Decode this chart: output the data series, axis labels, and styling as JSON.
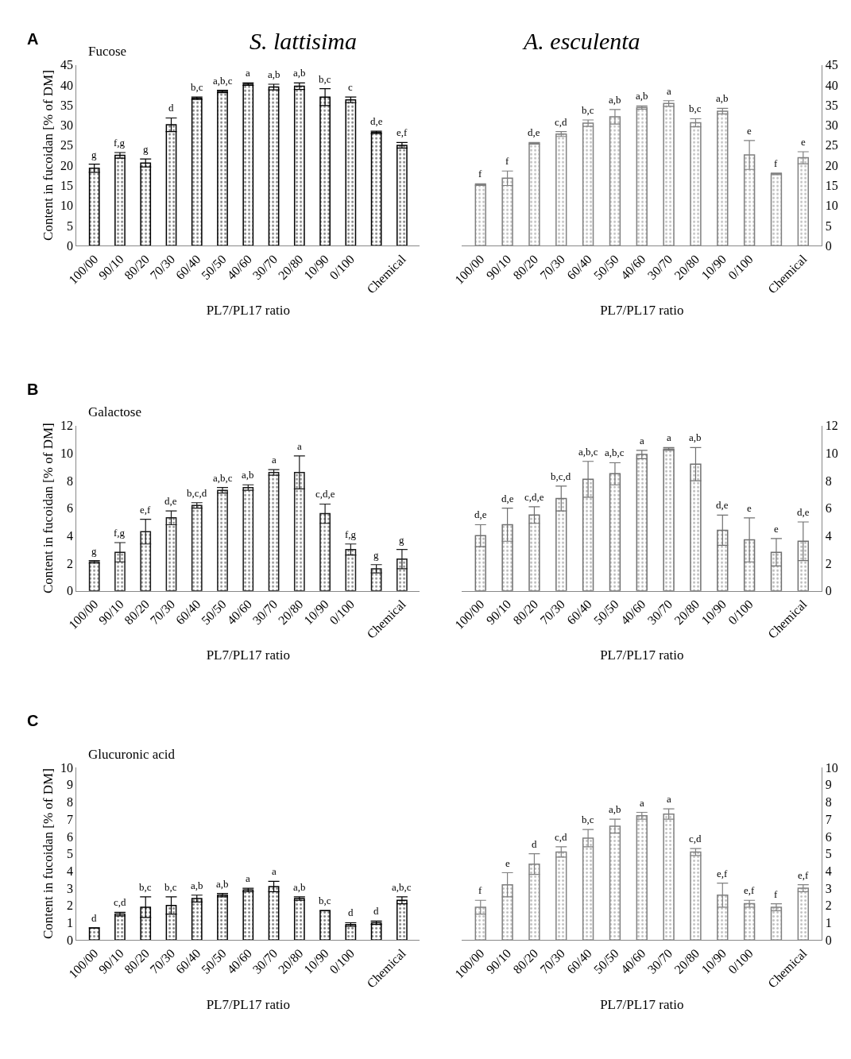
{
  "chart_data": [
    {
      "type": "bar",
      "title": "S. lattisima",
      "subtitle": "Fucose",
      "annotations": [
        "A"
      ],
      "xlabel": "PL7/PL17 ratio",
      "ylabel": "Content in fucoidan [% of DM]",
      "categories": [
        "100/00",
        "90/10",
        "80/20",
        "70/30",
        "60/40",
        "50/50",
        "40/60",
        "30/70",
        "20/80",
        "10/90",
        "0/100",
        null,
        "Chemical"
      ],
      "ylim": [
        0,
        45
      ],
      "yticks": [
        0,
        5,
        10,
        15,
        20,
        25,
        30,
        35,
        40,
        45
      ],
      "series": [
        {
          "color": "#000000",
          "values": [
            19.3,
            22.5,
            20.6,
            30.1,
            36.7,
            38.4,
            40.2,
            39.5,
            39.7,
            37.0,
            36.3,
            28.2,
            25.0
          ],
          "errors": [
            1.0,
            0.7,
            1.0,
            1.7,
            0.3,
            0.3,
            0.3,
            0.7,
            0.8,
            2.1,
            0.7,
            0.3,
            0.7
          ],
          "value_labels": [
            "g",
            "f,g",
            "g",
            "d",
            "b,c",
            "a,b,c",
            "a",
            "a,b",
            "a,b",
            "b,c",
            "c",
            "d,e",
            "e,f"
          ]
        }
      ]
    },
    {
      "type": "bar",
      "title": "A. esculenta",
      "xlabel": "PL7/PL17 ratio",
      "categories": [
        "100/00",
        "90/10",
        "80/20",
        "70/30",
        "60/40",
        "50/50",
        "40/60",
        "30/70",
        "20/80",
        "10/90",
        "0/100",
        null,
        "Chemical"
      ],
      "y2lim": [
        0,
        45
      ],
      "y2ticks": [
        0,
        5,
        10,
        15,
        20,
        25,
        30,
        35,
        40,
        45
      ],
      "series": [
        {
          "axis": "y2",
          "color": "#808080",
          "values": [
            15.2,
            16.8,
            25.5,
            27.8,
            30.5,
            32.1,
            34.4,
            35.4,
            30.6,
            33.5,
            22.6,
            17.9,
            21.9
          ],
          "errors": [
            0.2,
            1.8,
            0.2,
            0.6,
            0.8,
            1.8,
            0.4,
            0.7,
            1.0,
            0.7,
            3.6,
            0.2,
            1.5
          ],
          "value_labels": [
            "f",
            "f",
            "d,e",
            "c,d",
            "b,c",
            "a,b",
            "a,b",
            "a",
            "b,c",
            "a,b",
            "e",
            "f",
            "e"
          ]
        }
      ]
    },
    {
      "type": "bar",
      "subtitle": "Galactose",
      "annotations": [
        "B"
      ],
      "xlabel": "PL7/PL17 ratio",
      "ylabel": "Content in fucoidan [% of DM]",
      "categories": [
        "100/00",
        "90/10",
        "80/20",
        "70/30",
        "60/40",
        "50/50",
        "40/60",
        "30/70",
        "20/80",
        "10/90",
        "0/100",
        null,
        "Chemical"
      ],
      "ylim": [
        0,
        12
      ],
      "yticks": [
        0,
        2,
        4,
        6,
        8,
        10,
        12
      ],
      "series": [
        {
          "color": "#1a1a1a",
          "values": [
            2.1,
            2.8,
            4.3,
            5.3,
            6.2,
            7.3,
            7.5,
            8.6,
            8.6,
            5.6,
            3.0,
            1.6,
            2.3
          ],
          "errors": [
            0.1,
            0.7,
            0.9,
            0.5,
            0.2,
            0.2,
            0.2,
            0.2,
            1.2,
            0.7,
            0.4,
            0.3,
            0.7
          ],
          "value_labels": [
            "g",
            "f,g",
            "e,f",
            "d,e",
            "b,c,d",
            "a,b,c",
            "a,b",
            "a",
            "a",
            "c,d,e",
            "f,g",
            "g",
            "g"
          ]
        }
      ]
    },
    {
      "type": "bar",
      "xlabel": "PL7/PL17 ratio",
      "categories": [
        "100/00",
        "90/10",
        "80/20",
        "70/30",
        "60/40",
        "50/50",
        "40/60",
        "30/70",
        "20/80",
        "10/90",
        "0/100",
        null,
        "Chemical"
      ],
      "y2lim": [
        0,
        12
      ],
      "y2ticks": [
        0,
        2,
        4,
        6,
        8,
        10,
        12
      ],
      "series": [
        {
          "axis": "y2",
          "color": "#707070",
          "values": [
            4.0,
            4.8,
            5.5,
            6.7,
            8.1,
            8.5,
            9.9,
            10.3,
            9.2,
            4.4,
            3.7,
            2.8,
            3.6
          ],
          "errors": [
            0.8,
            1.2,
            0.6,
            0.9,
            1.3,
            0.8,
            0.3,
            0.1,
            1.2,
            1.1,
            1.6,
            1.0,
            1.4
          ],
          "value_labels": [
            "d,e",
            "d,e",
            "c,d,e",
            "b,c,d",
            "a,b,c",
            "a,b,c",
            "a",
            "a",
            "a,b",
            "d,e",
            "e",
            "e",
            "d,e"
          ]
        }
      ]
    },
    {
      "type": "bar",
      "subtitle": "Glucuronic acid",
      "annotations": [
        "C"
      ],
      "xlabel": "PL7/PL17 ratio",
      "ylabel": "Content in fucoidan [% of DM]",
      "categories": [
        "100/00",
        "90/10",
        "80/20",
        "70/30",
        "60/40",
        "50/50",
        "40/60",
        "30/70",
        "20/80",
        "10/90",
        "0/100",
        null,
        "Chemical"
      ],
      "ylim": [
        0,
        10
      ],
      "yticks": [
        0,
        1,
        2,
        3,
        4,
        5,
        6,
        7,
        8,
        9,
        10
      ],
      "series": [
        {
          "color": "#000000",
          "values": [
            0.7,
            1.5,
            1.9,
            2.0,
            2.4,
            2.6,
            2.9,
            3.1,
            2.4,
            1.7,
            0.9,
            1.0,
            2.3
          ],
          "errors": [
            0,
            0.1,
            0.6,
            0.5,
            0.2,
            0.1,
            0.1,
            0.3,
            0.1,
            0,
            0.1,
            0.1,
            0.2
          ],
          "value_labels": [
            "d",
            "c,d",
            "b,c",
            "b,c",
            "a,b",
            "a,b",
            "a",
            "a",
            "a,b",
            "b,c",
            "d",
            "d",
            "a,b,c"
          ]
        }
      ]
    },
    {
      "type": "bar",
      "xlabel": "PL7/PL17 ratio",
      "categories": [
        "100/00",
        "90/10",
        "80/20",
        "70/30",
        "60/40",
        "50/50",
        "40/60",
        "30/70",
        "20/80",
        "10/90",
        "0/100",
        null,
        "Chemical"
      ],
      "y2lim": [
        0,
        10
      ],
      "y2ticks": [
        0,
        1,
        2,
        3,
        4,
        5,
        6,
        7,
        8,
        9,
        10
      ],
      "series": [
        {
          "axis": "y2",
          "color": "#808080",
          "values": [
            1.9,
            3.2,
            4.4,
            5.1,
            5.9,
            6.6,
            7.2,
            7.3,
            5.1,
            2.6,
            2.1,
            1.9,
            3.0
          ],
          "errors": [
            0.4,
            0.7,
            0.6,
            0.3,
            0.5,
            0.4,
            0.2,
            0.3,
            0.2,
            0.7,
            0.2,
            0.2,
            0.2
          ],
          "value_labels": [
            "f",
            "e",
            "d",
            "c,d",
            "b,c",
            "a,b",
            "a",
            "a",
            "c,d",
            "e,f",
            "e,f",
            "f",
            "e,f"
          ]
        }
      ]
    }
  ]
}
